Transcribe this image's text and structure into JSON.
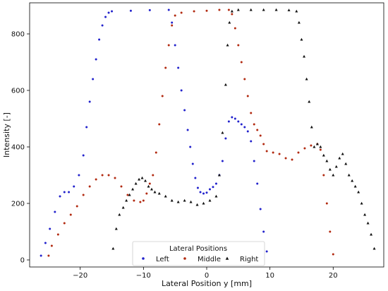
{
  "chart_data": {
    "type": "scatter",
    "xlabel": "Lateral Position y [mm]",
    "ylabel": "Intensity [-]",
    "xlim": [
      -28,
      28
    ],
    "ylim": [
      -25,
      910
    ],
    "x_ticks": [
      -20,
      -10,
      0,
      10,
      20
    ],
    "y_ticks": [
      0,
      200,
      400,
      600,
      800
    ],
    "grid": false,
    "legend": {
      "title": "Lateral Positions",
      "placement": "bottom-center",
      "entries": [
        "Left",
        "Middle",
        "Right"
      ]
    },
    "series": [
      {
        "name": "Left",
        "color": "#2222cc",
        "marker": "dot",
        "points": [
          [
            -26.2,
            15
          ],
          [
            -25.5,
            60
          ],
          [
            -24.8,
            110
          ],
          [
            -24,
            170
          ],
          [
            -23.2,
            225
          ],
          [
            -22.5,
            240
          ],
          [
            -21.8,
            240
          ],
          [
            -21,
            260
          ],
          [
            -20.2,
            300
          ],
          [
            -19.5,
            370
          ],
          [
            -19,
            470
          ],
          [
            -18.5,
            560
          ],
          [
            -18,
            640
          ],
          [
            -17.5,
            710
          ],
          [
            -17,
            780
          ],
          [
            -16.5,
            830
          ],
          [
            -16,
            860
          ],
          [
            -15.5,
            875
          ],
          [
            -15,
            880
          ],
          [
            -12,
            882
          ],
          [
            -9,
            884
          ],
          [
            -6,
            885
          ],
          [
            -5.5,
            840
          ],
          [
            -5,
            760
          ],
          [
            -4.5,
            680
          ],
          [
            -4,
            600
          ],
          [
            -3.5,
            530
          ],
          [
            -3,
            460
          ],
          [
            -2.6,
            400
          ],
          [
            -2.2,
            340
          ],
          [
            -1.8,
            290
          ],
          [
            -1.4,
            255
          ],
          [
            -1,
            240
          ],
          [
            -0.5,
            235
          ],
          [
            0,
            238
          ],
          [
            0.5,
            250
          ],
          [
            1,
            258
          ],
          [
            1.5,
            270
          ],
          [
            2,
            300
          ],
          [
            2.5,
            350
          ],
          [
            3,
            430
          ],
          [
            3.5,
            490
          ],
          [
            4,
            505
          ],
          [
            4.5,
            500
          ],
          [
            5,
            490
          ],
          [
            5.5,
            480
          ],
          [
            6,
            470
          ],
          [
            6.5,
            455
          ],
          [
            7,
            420
          ],
          [
            7.5,
            350
          ],
          [
            8,
            270
          ],
          [
            8.5,
            180
          ],
          [
            9,
            100
          ],
          [
            9.5,
            30
          ]
        ]
      },
      {
        "name": "Middle",
        "color": "#b22a10",
        "marker": "dot",
        "points": [
          [
            -25,
            15
          ],
          [
            -24.5,
            50
          ],
          [
            -23.5,
            90
          ],
          [
            -22.5,
            130
          ],
          [
            -21.5,
            160
          ],
          [
            -20.5,
            190
          ],
          [
            -19.5,
            230
          ],
          [
            -18.5,
            260
          ],
          [
            -17.5,
            285
          ],
          [
            -16.5,
            300
          ],
          [
            -15.5,
            300
          ],
          [
            -14.5,
            290
          ],
          [
            -13.5,
            260
          ],
          [
            -12.5,
            230
          ],
          [
            -11.5,
            210
          ],
          [
            -10.5,
            205
          ],
          [
            -10,
            210
          ],
          [
            -9.5,
            235
          ],
          [
            -9,
            270
          ],
          [
            -8.5,
            300
          ],
          [
            -8,
            380
          ],
          [
            -7.5,
            480
          ],
          [
            -7,
            580
          ],
          [
            -6.5,
            680
          ],
          [
            -6,
            760
          ],
          [
            -5.5,
            830
          ],
          [
            -5,
            865
          ],
          [
            -4,
            875
          ],
          [
            -2,
            880
          ],
          [
            0,
            882
          ],
          [
            2,
            885
          ],
          [
            3.5,
            885
          ],
          [
            4,
            870
          ],
          [
            4.5,
            820
          ],
          [
            5,
            760
          ],
          [
            5.5,
            700
          ],
          [
            6,
            640
          ],
          [
            6.5,
            580
          ],
          [
            7,
            520
          ],
          [
            7.5,
            480
          ],
          [
            8,
            460
          ],
          [
            8.5,
            440
          ],
          [
            9,
            410
          ],
          [
            9.5,
            385
          ],
          [
            10.5,
            380
          ],
          [
            11.5,
            375
          ],
          [
            12.5,
            360
          ],
          [
            13.5,
            355
          ],
          [
            14.5,
            380
          ],
          [
            15.5,
            395
          ],
          [
            16.5,
            405
          ],
          [
            17.5,
            410
          ],
          [
            18,
            390
          ],
          [
            18.5,
            300
          ],
          [
            19,
            200
          ],
          [
            19.5,
            100
          ],
          [
            20,
            20
          ]
        ]
      },
      {
        "name": "Right",
        "color": "#111111",
        "marker": "triangle",
        "points": [
          [
            -14.8,
            40
          ],
          [
            -14.3,
            110
          ],
          [
            -13.8,
            160
          ],
          [
            -13.2,
            185
          ],
          [
            -12.7,
            210
          ],
          [
            -12.2,
            230
          ],
          [
            -11.7,
            250
          ],
          [
            -11.2,
            270
          ],
          [
            -10.7,
            285
          ],
          [
            -10.2,
            290
          ],
          [
            -9.7,
            280
          ],
          [
            -9.2,
            260
          ],
          [
            -8.7,
            250
          ],
          [
            -8.2,
            240
          ],
          [
            -7.5,
            235
          ],
          [
            -6.5,
            225
          ],
          [
            -5.5,
            210
          ],
          [
            -4.5,
            205
          ],
          [
            -3.5,
            210
          ],
          [
            -2.5,
            205
          ],
          [
            -1.5,
            195
          ],
          [
            -0.5,
            200
          ],
          [
            0.5,
            210
          ],
          [
            1.5,
            225
          ],
          [
            2,
            300
          ],
          [
            2.5,
            450
          ],
          [
            3,
            620
          ],
          [
            3.3,
            760
          ],
          [
            3.6,
            840
          ],
          [
            4,
            880
          ],
          [
            5,
            885
          ],
          [
            7,
            885
          ],
          [
            9,
            885
          ],
          [
            11,
            885
          ],
          [
            13,
            884
          ],
          [
            14.2,
            880
          ],
          [
            14.6,
            840
          ],
          [
            15,
            780
          ],
          [
            15.4,
            720
          ],
          [
            15.8,
            640
          ],
          [
            16.2,
            560
          ],
          [
            16.6,
            470
          ],
          [
            17,
            400
          ],
          [
            17.5,
            410
          ],
          [
            18,
            400
          ],
          [
            18.5,
            370
          ],
          [
            19,
            350
          ],
          [
            19.5,
            320
          ],
          [
            20,
            300
          ],
          [
            20.5,
            330
          ],
          [
            21,
            360
          ],
          [
            21.5,
            375
          ],
          [
            22,
            340
          ],
          [
            22.5,
            300
          ],
          [
            23,
            280
          ],
          [
            23.5,
            260
          ],
          [
            24,
            240
          ],
          [
            24.5,
            200
          ],
          [
            25,
            160
          ],
          [
            25.5,
            130
          ],
          [
            26,
            90
          ],
          [
            26.5,
            40
          ]
        ]
      }
    ]
  }
}
